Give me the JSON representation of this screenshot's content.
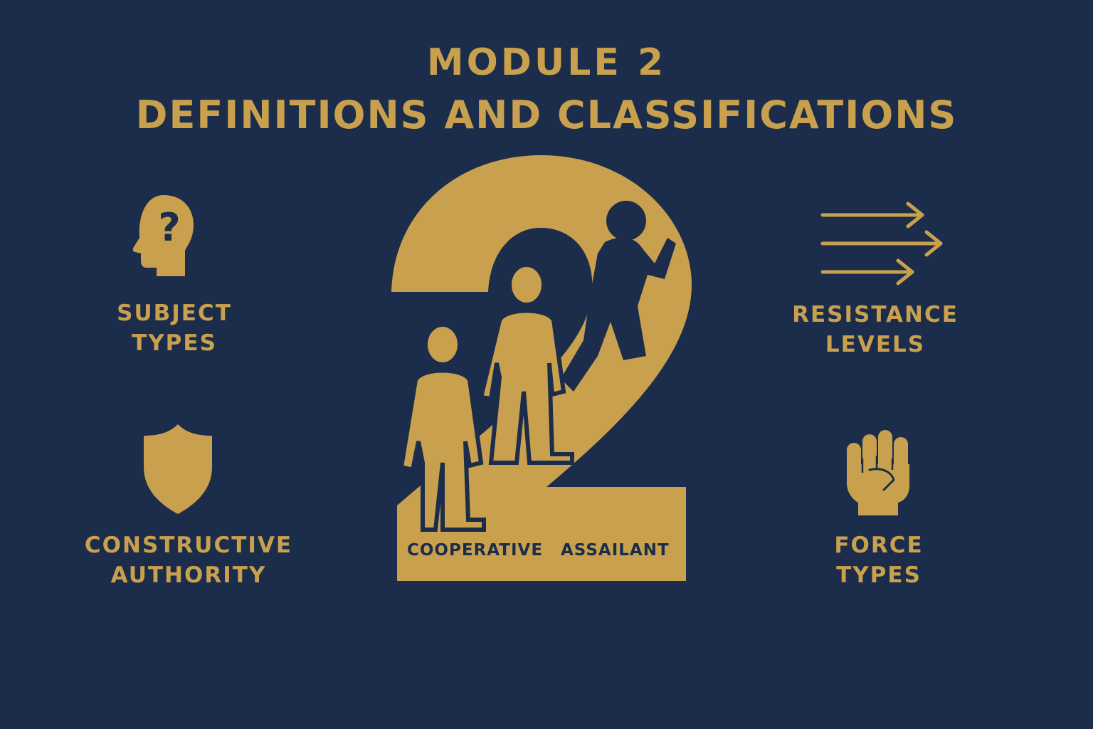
{
  "title": {
    "module": "MODULE 2",
    "heading": "DEFINITIONS AND CLASSIFICATIONS"
  },
  "categories": {
    "subject_types": {
      "line1": "SUBJECT",
      "line2": "TYPES",
      "icon": "head-question-icon"
    },
    "constructive_authority": {
      "line1": "CONSTRUCTIVE",
      "line2": "AUTHORITY",
      "icon": "shield-icon"
    },
    "resistance_levels": {
      "line1": "RESISTANCE",
      "line2": "LEVELS",
      "icon": "arrows-icon"
    },
    "force_types": {
      "line1": "FORCE",
      "line2": "TYPES",
      "icon": "fist-icon"
    }
  },
  "center": {
    "numeral_icon": "number-two-icon",
    "left_label": "COOPERATIVE",
    "right_label": "ASSAILANT"
  },
  "colors": {
    "background": "#1b2d4b",
    "accent": "#c9a14e"
  }
}
